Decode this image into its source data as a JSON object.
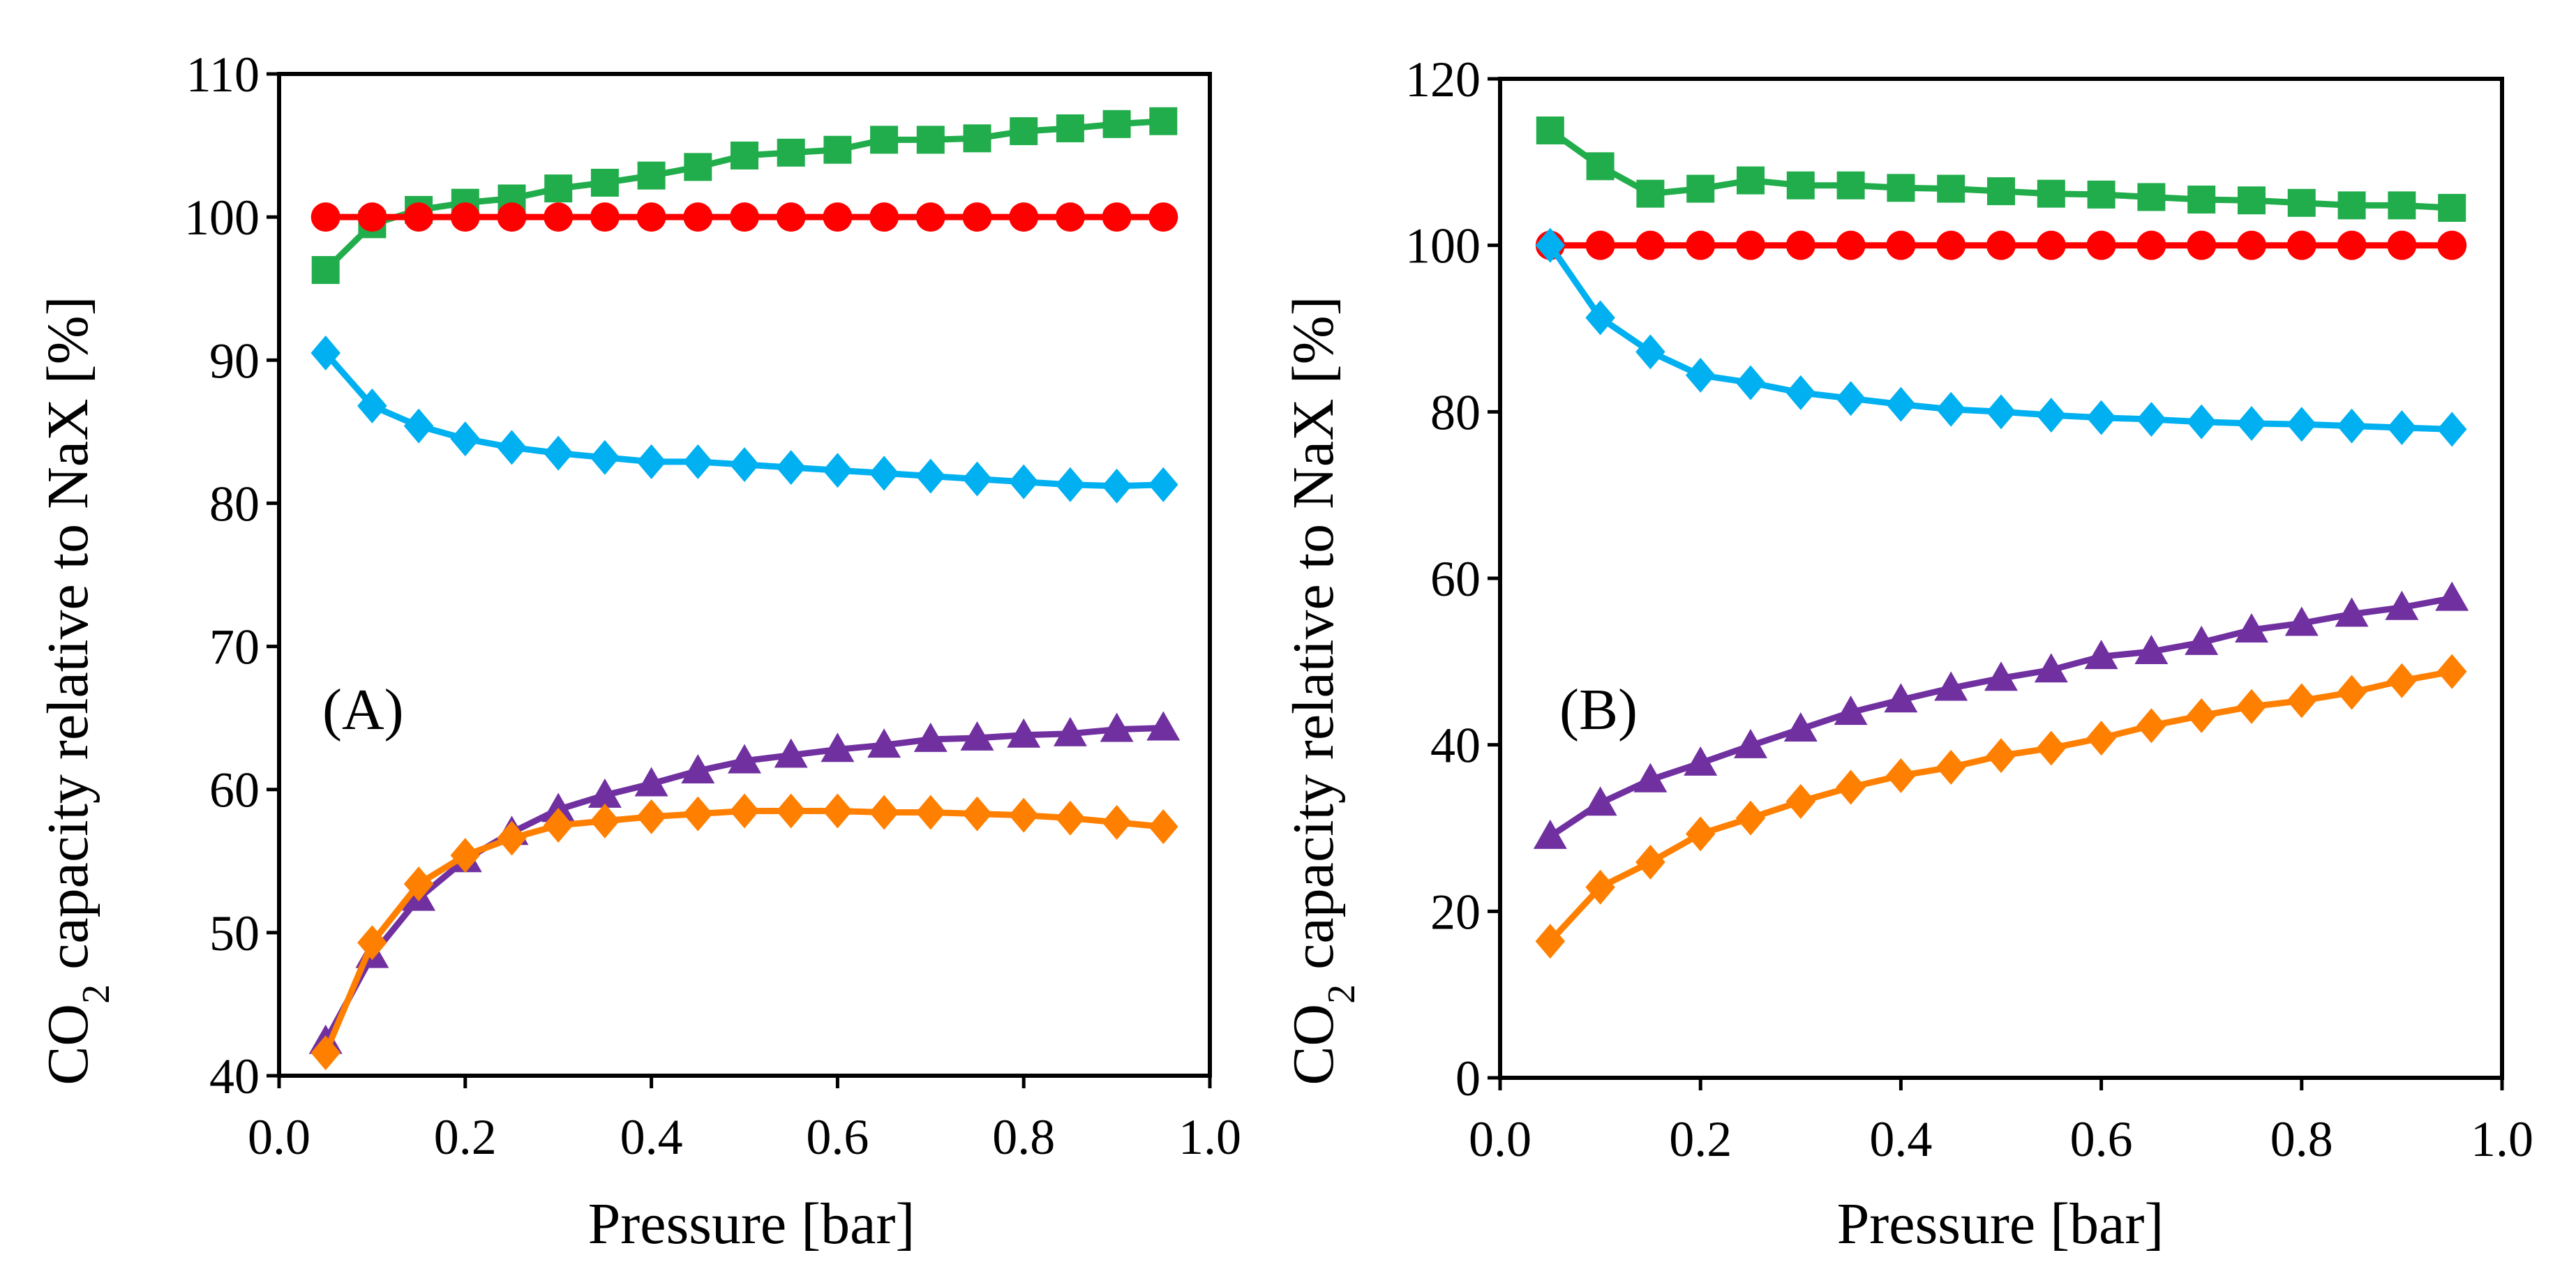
{
  "figure_title": "",
  "chart_data": [
    {
      "type": "line",
      "panel_label": "(A)",
      "xlabel": "Pressure [bar]",
      "ylabel": {
        "prefix": "CO",
        "subscript": "2",
        "suffix": " capacity relative to NaX [%]"
      },
      "xlim": [
        0.0,
        1.0
      ],
      "ylim": [
        40,
        110
      ],
      "x_ticks": [
        0.0,
        0.2,
        0.4,
        0.6,
        0.8,
        1.0
      ],
      "x_tick_labels": [
        "0.0",
        "0.2",
        "0.4",
        "0.6",
        "0.8",
        "1.0"
      ],
      "y_ticks": [
        40,
        50,
        60,
        70,
        80,
        90,
        100,
        110
      ],
      "y_tick_labels": [
        "40",
        "50",
        "60",
        "70",
        "80",
        "90",
        "100",
        "110"
      ],
      "x": [
        0.05,
        0.1,
        0.15,
        0.2,
        0.25,
        0.3,
        0.35,
        0.4,
        0.45,
        0.5,
        0.55,
        0.6,
        0.65,
        0.7,
        0.75,
        0.8,
        0.85,
        0.9,
        0.95
      ],
      "grid": false,
      "legend": "none",
      "series": [
        {
          "name": "green-squares",
          "color": "#21AD4B",
          "marker": "square",
          "values": [
            96.3,
            99.5,
            100.5,
            101.0,
            101.3,
            102.0,
            102.4,
            102.9,
            103.5,
            104.3,
            104.5,
            104.7,
            105.4,
            105.4,
            105.5,
            106.0,
            106.2,
            106.5,
            106.7
          ]
        },
        {
          "name": "red-circles",
          "color": "#FF0000",
          "marker": "circle",
          "values": [
            100,
            100,
            100,
            100,
            100,
            100,
            100,
            100,
            100,
            100,
            100,
            100,
            100,
            100,
            100,
            100,
            100,
            100,
            100
          ]
        },
        {
          "name": "blue-diamonds",
          "color": "#00B0F0",
          "marker": "diamond",
          "values": [
            90.5,
            86.8,
            85.4,
            84.5,
            83.9,
            83.5,
            83.2,
            82.9,
            82.9,
            82.7,
            82.5,
            82.3,
            82.1,
            81.9,
            81.7,
            81.5,
            81.3,
            81.2,
            81.3
          ]
        },
        {
          "name": "purple-triangles",
          "color": "#7030A0",
          "marker": "triangle",
          "values": [
            42.4,
            48.4,
            52.4,
            55.1,
            57.0,
            58.6,
            59.6,
            60.4,
            61.3,
            62.0,
            62.4,
            62.8,
            63.1,
            63.5,
            63.6,
            63.8,
            63.9,
            64.2,
            64.3
          ]
        },
        {
          "name": "orange-diamonds",
          "color": "#FF7F00",
          "marker": "diamond",
          "values": [
            41.6,
            49.3,
            53.4,
            55.4,
            56.6,
            57.5,
            57.8,
            58.1,
            58.3,
            58.5,
            58.5,
            58.5,
            58.4,
            58.4,
            58.3,
            58.2,
            58.0,
            57.7,
            57.4
          ]
        }
      ]
    },
    {
      "type": "line",
      "panel_label": "(B)",
      "xlabel": "Pressure [bar]",
      "ylabel": {
        "prefix": "CO",
        "subscript": "2",
        "suffix": " capacity relative to NaX [%]"
      },
      "xlim": [
        0.0,
        1.0
      ],
      "ylim": [
        0,
        120
      ],
      "x_ticks": [
        0.0,
        0.2,
        0.4,
        0.6,
        0.8,
        1.0
      ],
      "x_tick_labels": [
        "0.0",
        "0.2",
        "0.4",
        "0.6",
        "0.8",
        "1.0"
      ],
      "y_ticks": [
        0,
        20,
        40,
        60,
        80,
        100,
        120
      ],
      "y_tick_labels": [
        "0",
        "20",
        "40",
        "60",
        "80",
        "100",
        "120"
      ],
      "x": [
        0.05,
        0.1,
        0.15,
        0.2,
        0.25,
        0.3,
        0.35,
        0.4,
        0.45,
        0.5,
        0.55,
        0.6,
        0.65,
        0.7,
        0.75,
        0.8,
        0.85,
        0.9,
        0.95
      ],
      "grid": false,
      "legend": "none",
      "series": [
        {
          "name": "green-squares",
          "color": "#21AD4B",
          "marker": "square",
          "values": [
            113.8,
            109.5,
            106.2,
            106.8,
            107.8,
            107.2,
            107.2,
            106.9,
            106.8,
            106.5,
            106.2,
            106.1,
            105.8,
            105.5,
            105.4,
            105.1,
            104.8,
            104.8,
            104.5
          ]
        },
        {
          "name": "red-circles",
          "color": "#FF0000",
          "marker": "circle",
          "values": [
            100,
            100,
            100,
            100,
            100,
            100,
            100,
            100,
            100,
            100,
            100,
            100,
            100,
            100,
            100,
            100,
            100,
            100,
            100
          ]
        },
        {
          "name": "blue-diamonds",
          "color": "#00B0F0",
          "marker": "diamond",
          "values": [
            100,
            91.3,
            87.2,
            84.4,
            83.5,
            82.3,
            81.6,
            80.9,
            80.3,
            80.0,
            79.6,
            79.3,
            79.1,
            78.8,
            78.6,
            78.5,
            78.3,
            78.1,
            77.9
          ]
        },
        {
          "name": "purple-triangles",
          "color": "#7030A0",
          "marker": "triangle",
          "values": [
            29.0,
            33.0,
            35.8,
            37.8,
            39.9,
            41.9,
            43.9,
            45.4,
            46.8,
            48.0,
            49.0,
            50.6,
            51.2,
            52.3,
            53.8,
            54.6,
            55.7,
            56.5,
            57.6
          ]
        },
        {
          "name": "orange-diamonds",
          "color": "#FF7F00",
          "marker": "diamond",
          "values": [
            16.4,
            22.9,
            25.9,
            29.3,
            31.2,
            33.2,
            34.9,
            36.3,
            37.3,
            38.7,
            39.6,
            40.8,
            42.3,
            43.5,
            44.6,
            45.3,
            46.3,
            47.7,
            48.8
          ]
        }
      ]
    }
  ]
}
